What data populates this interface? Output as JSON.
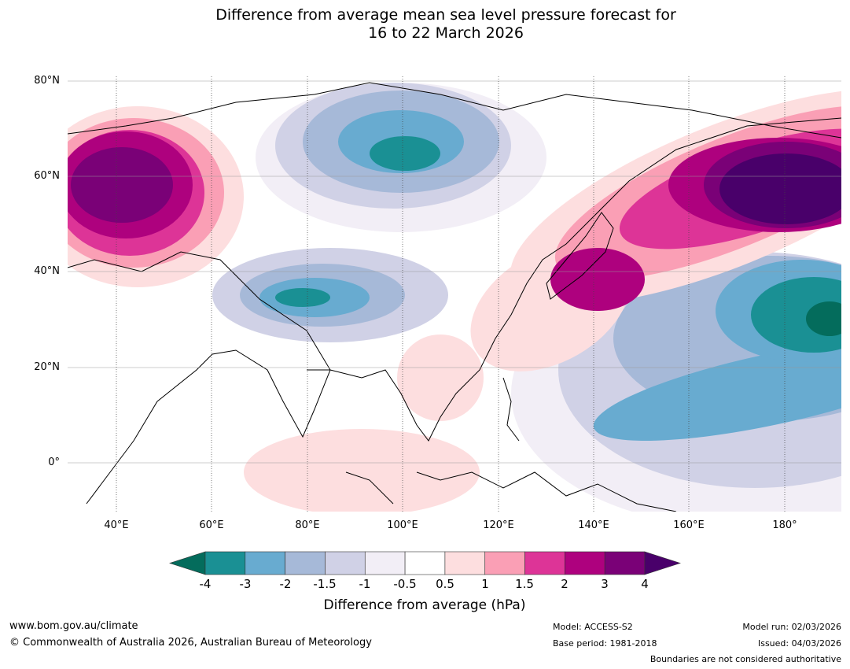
{
  "title": {
    "line1": "Difference from average mean sea level pressure forecast for",
    "line2": "16 to 22 March 2026"
  },
  "map": {
    "lat_labels": [
      "80°N",
      "60°N",
      "40°N",
      "20°N",
      "0°"
    ],
    "lon_labels": [
      "40°E",
      "60°E",
      "80°E",
      "100°E",
      "120°E",
      "140°E",
      "160°E",
      "180°"
    ],
    "region": "Asia and western Pacific, 10°S–80°N, 30°E–190°E"
  },
  "colorbar": {
    "title": "Difference from average (hPa)",
    "ticks": [
      "-4",
      "-3",
      "-2",
      "-1.5",
      "-1",
      "-0.5",
      "0.5",
      "1",
      "1.5",
      "2",
      "3",
      "4"
    ],
    "colors": [
      "#046c5c",
      "#1a9094",
      "#68abd0",
      "#a6b9d8",
      "#d0d1e6",
      "#f2eef6",
      "#ffffff",
      "#fddedf",
      "#fa9fb5",
      "#dd3497",
      "#ae017e",
      "#7a0177",
      "#49006a"
    ]
  },
  "footer": {
    "website": "www.bom.gov.au/climate",
    "copyright": "© Commonwealth of Australia 2026, Australian Bureau of Meteorology",
    "model": "Model: ACCESS-S2",
    "base_period": "Base period: 1981-2018",
    "model_run": "Model run: 02/03/2026",
    "issued": "Issued: 04/03/2026",
    "disclaimer": "Boundaries are not considered authoritative"
  }
}
